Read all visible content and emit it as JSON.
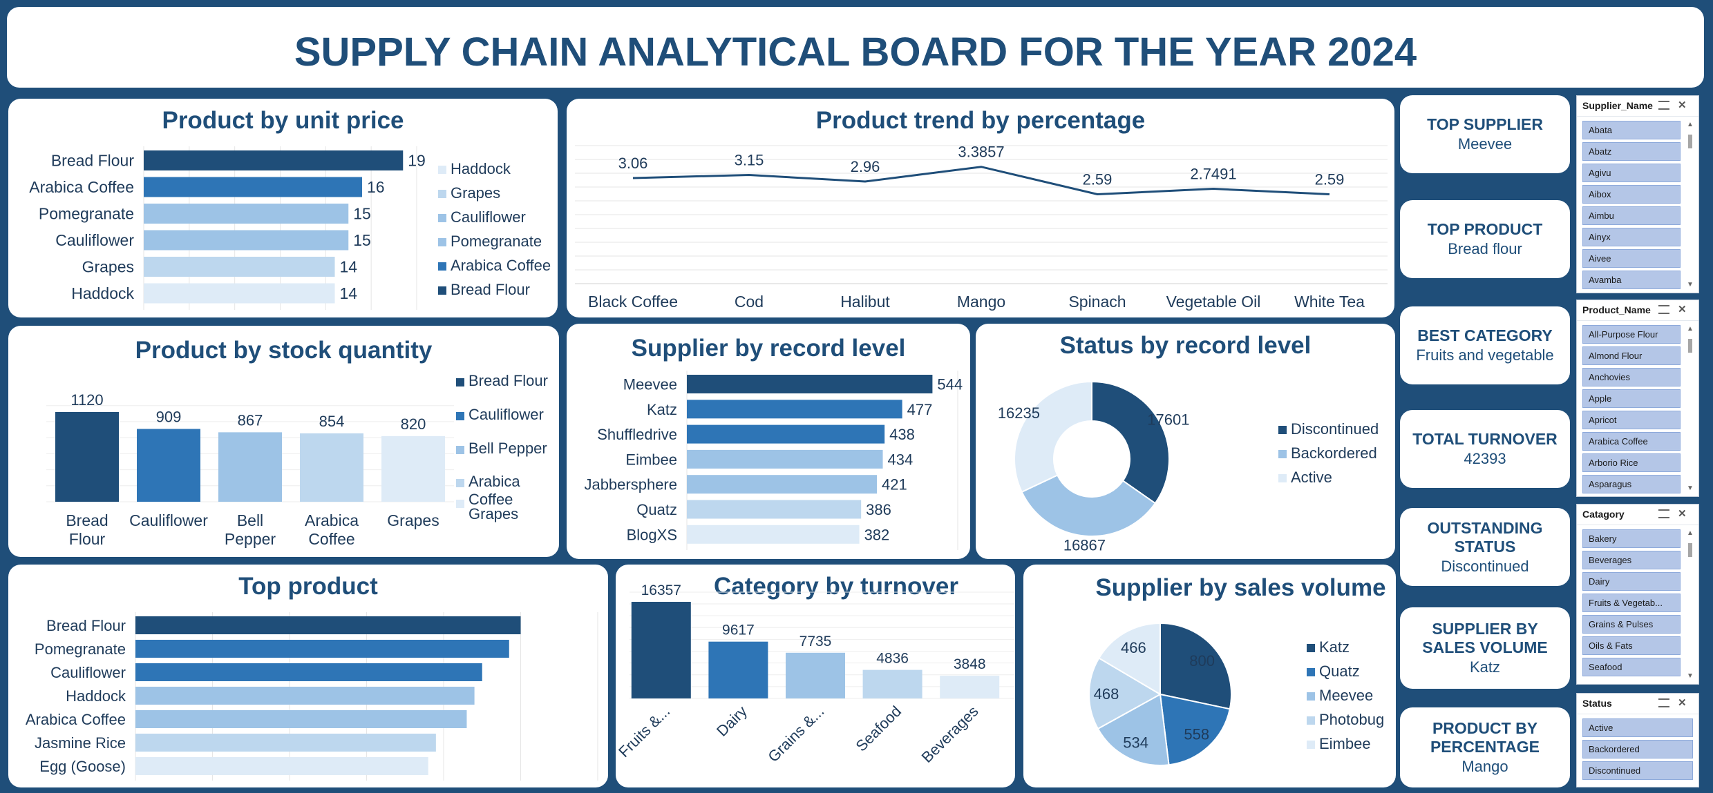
{
  "title": "SUPPLY CHAIN ANALYTICAL BOARD FOR THE YEAR 2024",
  "colors": {
    "background": "#1f4e79",
    "navy": "#1f4e79",
    "blue": "#2e75b6",
    "mid": "#9dc3e6",
    "light": "#bdd7ee",
    "pale": "#deebf7"
  },
  "chart_data": [
    {
      "id": "unit_price",
      "type": "bar",
      "orientation": "horizontal",
      "title": "Product by unit price",
      "categories": [
        "Bread Flour",
        "Arabica Coffee",
        "Pomegranate",
        "Cauliflower",
        "Grapes",
        "Haddock"
      ],
      "values": [
        19,
        16,
        15,
        15,
        14,
        14
      ],
      "xlim": [
        0,
        20
      ],
      "legend": {
        "position": "right",
        "entries": [
          "Haddock",
          "Grapes",
          "Cauliflower",
          "Pomegranate",
          "Arabica Coffee",
          "Bread Flour"
        ]
      }
    },
    {
      "id": "trend",
      "type": "line",
      "title": "Product trend by percentage",
      "categories": [
        "Black Coffee",
        "Cod",
        "Halibut",
        "Mango",
        "Spinach",
        "Vegetable Oil",
        "White Tea"
      ],
      "values": [
        3.06,
        3.15,
        2.96,
        3.3857,
        2.59,
        2.7491,
        2.59
      ],
      "labels": [
        "3.06",
        "3.15",
        "2.96",
        "3.3857",
        "2.59",
        "2.7491",
        "2.59"
      ],
      "ylim": [
        0,
        4
      ],
      "grid": true
    },
    {
      "id": "stock",
      "type": "bar",
      "orientation": "vertical",
      "title": "Product by stock quantity",
      "categories": [
        "Bread Flour",
        "Cauliflower",
        "Bell Pepper",
        "Arabica Coffee",
        "Grapes"
      ],
      "values": [
        1120,
        909,
        867,
        854,
        820
      ],
      "ylim": [
        0,
        1200
      ],
      "legend": {
        "position": "right",
        "entries": [
          "Bread Flour",
          "Cauliflower",
          "Bell Pepper",
          "Arabica Coffee",
          "Grapes"
        ]
      }
    },
    {
      "id": "supplier_record",
      "type": "bar",
      "orientation": "horizontal",
      "title": "Supplier by record level",
      "categories": [
        "Meevee",
        "Katz",
        "Shuffledrive",
        "Eimbee",
        "Jabbersphere",
        "Quatz",
        "BlogXS"
      ],
      "values": [
        544,
        477,
        438,
        434,
        421,
        386,
        382
      ],
      "xlim": [
        0,
        600
      ]
    },
    {
      "id": "status",
      "type": "pie",
      "donut": true,
      "title": "Status by record level",
      "categories": [
        "Discontinued",
        "Backordered",
        "Active"
      ],
      "values": [
        17601,
        16867,
        16235
      ],
      "legend": {
        "position": "right",
        "entries": [
          "Discontinued",
          "Backordered",
          "Active"
        ]
      }
    },
    {
      "id": "top_product",
      "type": "bar",
      "orientation": "horizontal",
      "title": "Top product",
      "categories": [
        "Bread Flour",
        "Pomegranate",
        "Cauliflower",
        "Haddock",
        "Arabica Coffee",
        "Jasmine Rice",
        "Egg (Goose)"
      ],
      "values": [
        100,
        97,
        90,
        88,
        86,
        78,
        76
      ],
      "xlim": [
        0,
        120
      ]
    },
    {
      "id": "category_turnover",
      "type": "bar",
      "orientation": "vertical",
      "title": "Category by turnover",
      "categories": [
        "Fruits &...",
        "Dairy",
        "Grains &...",
        "Seafood",
        "Beverages"
      ],
      "values": [
        16357,
        9617,
        7735,
        4836,
        3848
      ],
      "ylim": [
        0,
        18000
      ],
      "grid": true
    },
    {
      "id": "supplier_sales",
      "type": "pie",
      "title": "Supplier by sales volume",
      "categories": [
        "Katz",
        "Quatz",
        "Meevee",
        "Photobug",
        "Eimbee"
      ],
      "values": [
        800,
        558,
        534,
        468,
        466
      ],
      "legend": {
        "position": "right",
        "entries": [
          "Katz",
          "Quatz",
          "Meevee",
          "Photobug",
          "Eimbee"
        ]
      }
    }
  ],
  "kpis": [
    {
      "label": "TOP SUPPLIER",
      "value": "Meevee"
    },
    {
      "label": "TOP PRODUCT",
      "value": "Bread flour"
    },
    {
      "label": "BEST CATEGORY",
      "value": "Fruits and vegetable"
    },
    {
      "label": "TOTAL TURNOVER",
      "value": "42393"
    },
    {
      "label": "OUTSTANDING STATUS",
      "value": "Discontinued"
    },
    {
      "label": "SUPPLIER  BY SALES VOLUME",
      "value": "Katz"
    },
    {
      "label": "PRODUCT BY PERCENTAGE",
      "value": "Mango"
    }
  ],
  "slicers": [
    {
      "title": "Supplier_Name",
      "items": [
        "Abata",
        "Abatz",
        "Agivu",
        "Aibox",
        "Aimbu",
        "Ainyx",
        "Aivee",
        "Avamba"
      ]
    },
    {
      "title": "Product_Name",
      "items": [
        "All-Purpose Flour",
        "Almond Flour",
        "Anchovies",
        "Apple",
        "Apricot",
        "Arabica Coffee",
        "Arborio Rice",
        "Asparagus"
      ]
    },
    {
      "title": "Catagory",
      "items": [
        "Bakery",
        "Beverages",
        "Dairy",
        "Fruits & Vegetab...",
        "Grains & Pulses",
        "Oils & Fats",
        "Seafood"
      ]
    },
    {
      "title": "Status",
      "items": [
        "Active",
        "Backordered",
        "Discontinued"
      ]
    }
  ]
}
